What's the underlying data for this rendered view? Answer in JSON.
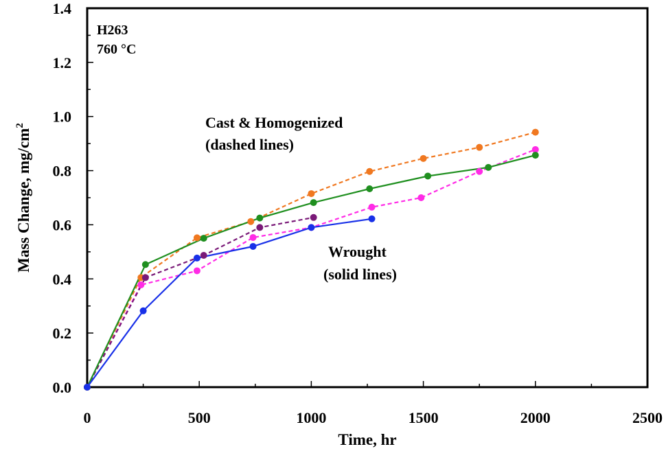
{
  "chart_data": {
    "type": "line",
    "xlabel": "Time,  hr",
    "ylabel_main": "Mass Change,  mg/cm",
    "ylabel_sup": "2",
    "xlim": [
      0,
      2500
    ],
    "ylim": [
      0,
      1.4
    ],
    "x_ticks": [
      0,
      500,
      1000,
      1500,
      2000,
      2500
    ],
    "x_tick_labels": [
      "0",
      "500",
      "1000",
      "1500",
      "2000",
      "2500"
    ],
    "y_ticks": [
      0,
      0.2,
      0.4,
      0.6,
      0.8,
      1.0,
      1.2,
      1.4
    ],
    "y_tick_labels": [
      "0.0",
      "0.2",
      "0.4",
      "0.6",
      "0.8",
      "1.0",
      "1.2",
      "1.4"
    ],
    "grid": false,
    "annotations": {
      "material": "H263",
      "temperature": "760 °C",
      "cast_line1": "Cast & Homogenized",
      "cast_line2": "(dashed lines)",
      "wrought_line1": "Wrought",
      "wrought_line2": "(solid lines)"
    },
    "series": [
      {
        "style": "dashed",
        "color": "#F07820",
        "points": [
          [
            0,
            0.0
          ],
          [
            240,
            0.405
          ],
          [
            490,
            0.552
          ],
          [
            730,
            0.612
          ],
          [
            1000,
            0.715
          ],
          [
            1260,
            0.797
          ],
          [
            1500,
            0.845
          ],
          [
            1750,
            0.886
          ],
          [
            2000,
            0.942
          ]
        ]
      },
      {
        "style": "dashed",
        "color": "#FF2BE6",
        "points": [
          [
            0,
            0.0
          ],
          [
            240,
            0.378
          ],
          [
            490,
            0.43
          ],
          [
            740,
            0.553
          ],
          [
            1000,
            0.59
          ],
          [
            1270,
            0.665
          ],
          [
            1490,
            0.7
          ],
          [
            1750,
            0.797
          ],
          [
            2000,
            0.878
          ]
        ]
      },
      {
        "style": "dashed",
        "color": "#7A1A78",
        "points": [
          [
            0,
            0.0
          ],
          [
            260,
            0.405
          ],
          [
            520,
            0.487
          ],
          [
            770,
            0.59
          ],
          [
            1010,
            0.627
          ]
        ]
      },
      {
        "style": "solid",
        "color": "#1F8F1F",
        "points": [
          [
            0,
            0.0
          ],
          [
            260,
            0.453
          ],
          [
            520,
            0.55
          ],
          [
            770,
            0.625
          ],
          [
            1010,
            0.682
          ],
          [
            1260,
            0.733
          ],
          [
            1520,
            0.78
          ],
          [
            1790,
            0.812
          ],
          [
            2000,
            0.857
          ]
        ]
      },
      {
        "style": "solid",
        "color": "#1830E8",
        "points": [
          [
            0,
            0.0
          ],
          [
            250,
            0.282
          ],
          [
            490,
            0.477
          ],
          [
            740,
            0.52
          ],
          [
            1000,
            0.59
          ],
          [
            1270,
            0.622
          ]
        ]
      }
    ]
  }
}
